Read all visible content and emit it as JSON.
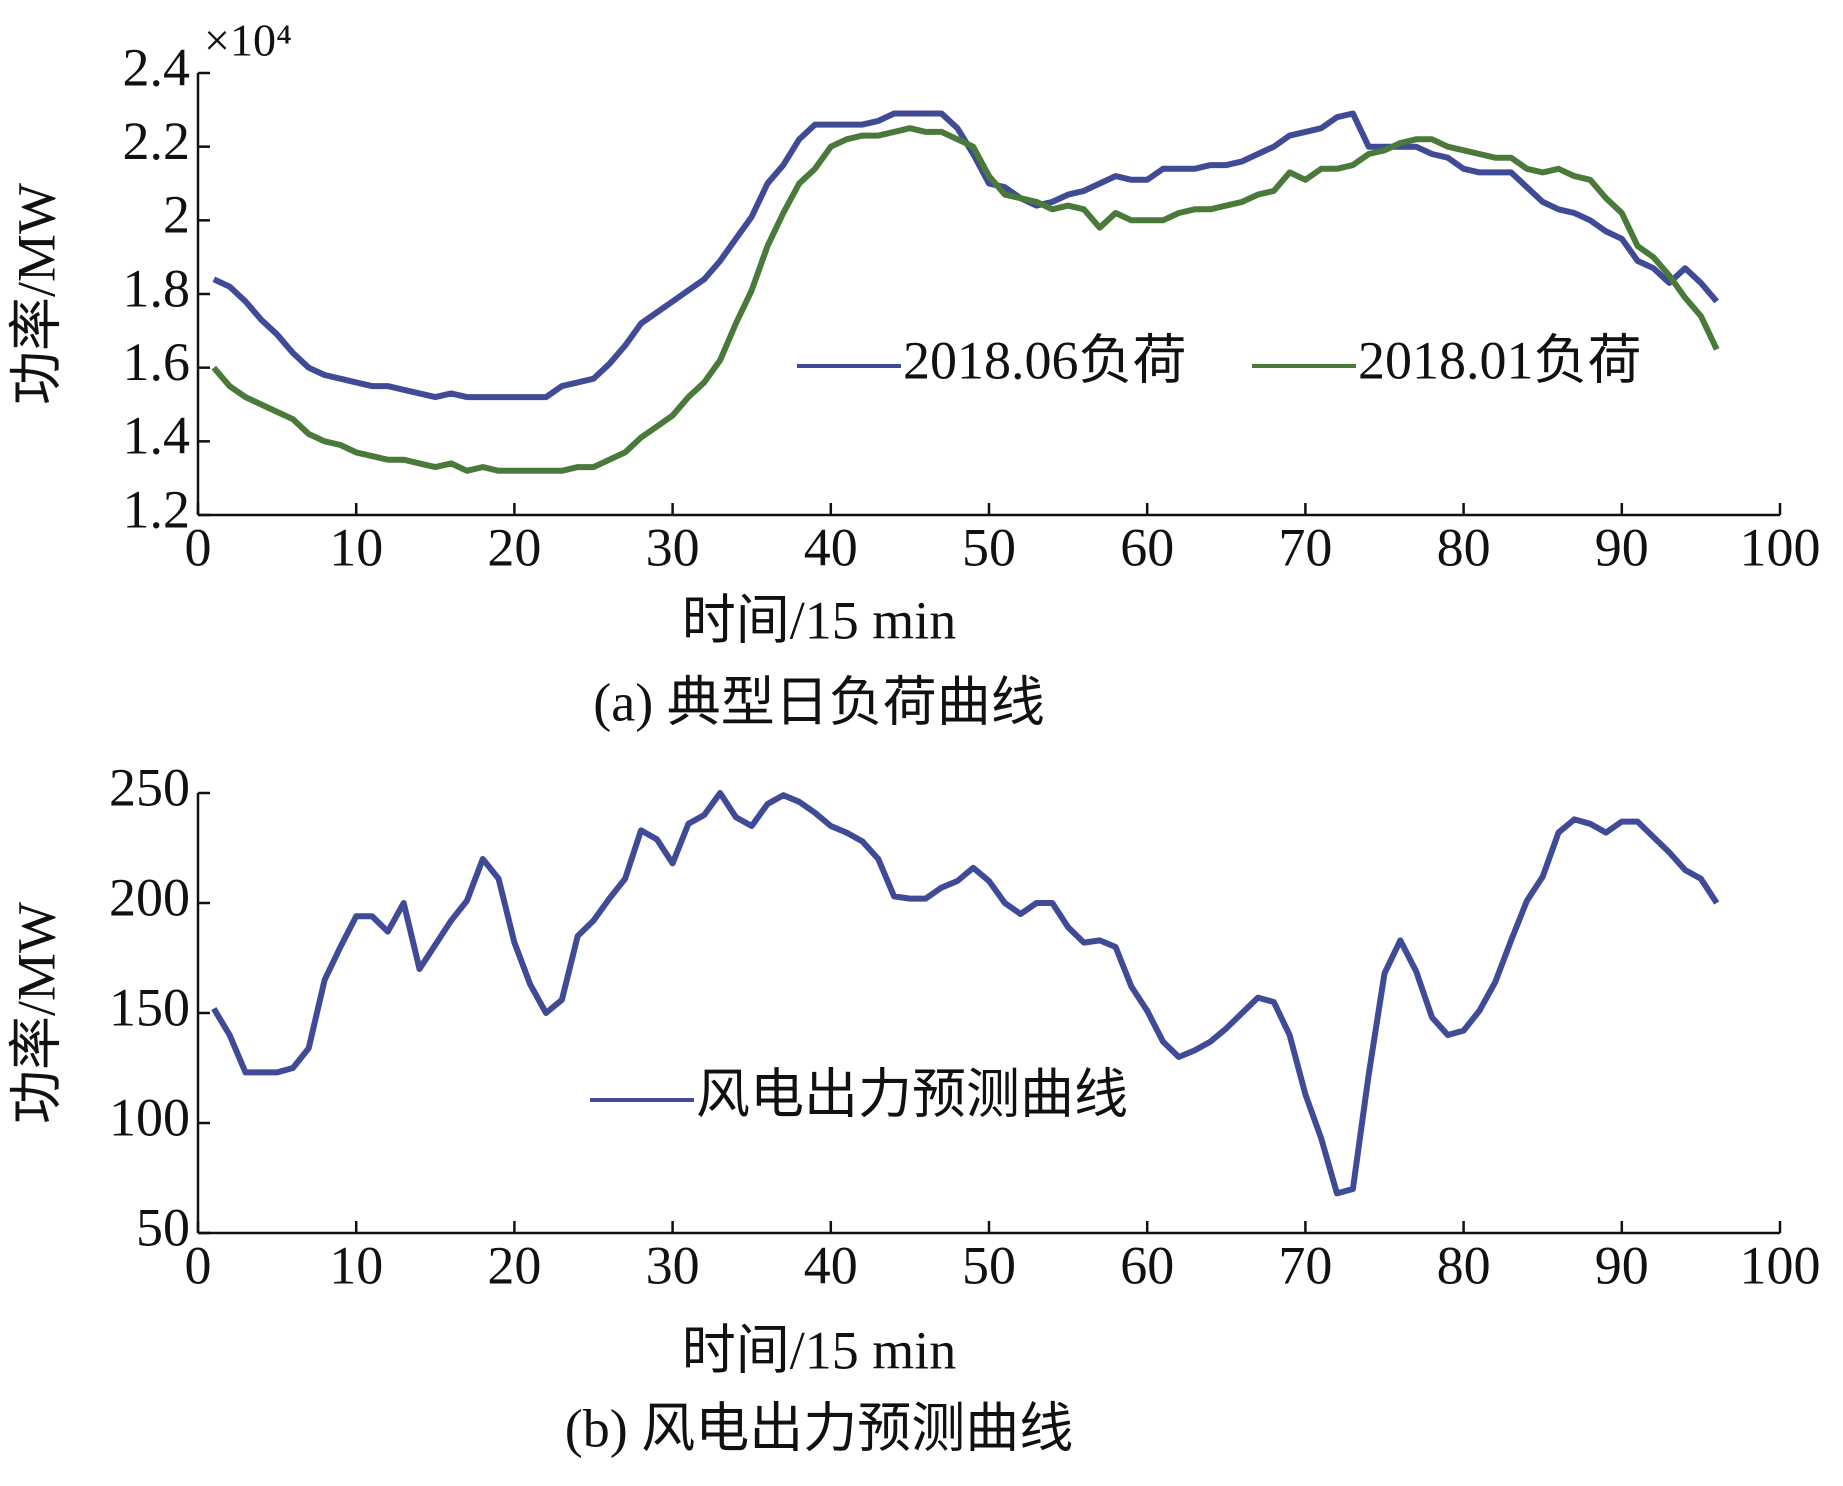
{
  "chart_data": [
    {
      "type": "line",
      "title": "(a) 典型日负荷曲线",
      "xlabel": "时间/15 min",
      "ylabel": "功率/MW",
      "axis_multiplier": "×10⁴",
      "legend": "center right",
      "xlim": [
        0,
        100
      ],
      "xticks": [
        0,
        10,
        20,
        30,
        40,
        50,
        60,
        70,
        80,
        90,
        100
      ],
      "ylim": [
        1.2,
        2.4
      ],
      "yticks": [
        1.2,
        1.4,
        1.6,
        1.8,
        2,
        2.2,
        2.4
      ],
      "x": [
        1,
        2,
        3,
        4,
        5,
        6,
        7,
        8,
        9,
        10,
        11,
        12,
        13,
        14,
        15,
        16,
        17,
        18,
        19,
        20,
        21,
        22,
        23,
        24,
        25,
        26,
        27,
        28,
        29,
        30,
        31,
        32,
        33,
        34,
        35,
        36,
        37,
        38,
        39,
        40,
        41,
        42,
        43,
        44,
        45,
        46,
        47,
        48,
        49,
        50,
        51,
        52,
        53,
        54,
        55,
        56,
        57,
        58,
        59,
        60,
        61,
        62,
        63,
        64,
        65,
        66,
        67,
        68,
        69,
        70,
        71,
        72,
        73,
        74,
        75,
        76,
        77,
        78,
        79,
        80,
        81,
        82,
        83,
        84,
        85,
        86,
        87,
        88,
        89,
        90,
        91,
        92,
        93,
        94,
        95,
        96
      ],
      "series": [
        {
          "name": "2018.06负荷",
          "color": "#3f4b96",
          "values": [
            1.84,
            1.82,
            1.78,
            1.73,
            1.69,
            1.64,
            1.6,
            1.58,
            1.57,
            1.56,
            1.55,
            1.55,
            1.54,
            1.53,
            1.52,
            1.53,
            1.52,
            1.52,
            1.52,
            1.52,
            1.52,
            1.52,
            1.55,
            1.56,
            1.57,
            1.61,
            1.66,
            1.72,
            1.75,
            1.78,
            1.81,
            1.84,
            1.89,
            1.95,
            2.01,
            2.1,
            2.15,
            2.22,
            2.26,
            2.26,
            2.26,
            2.26,
            2.27,
            2.29,
            2.29,
            2.29,
            2.29,
            2.25,
            2.18,
            2.1,
            2.09,
            2.06,
            2.04,
            2.05,
            2.07,
            2.08,
            2.1,
            2.12,
            2.11,
            2.11,
            2.14,
            2.14,
            2.14,
            2.15,
            2.15,
            2.16,
            2.18,
            2.2,
            2.23,
            2.24,
            2.25,
            2.28,
            2.29,
            2.2,
            2.2,
            2.2,
            2.2,
            2.18,
            2.17,
            2.14,
            2.13,
            2.13,
            2.13,
            2.09,
            2.05,
            2.03,
            2.02,
            2.0,
            1.97,
            1.95,
            1.89,
            1.87,
            1.83,
            1.87,
            1.83,
            1.78
          ]
        },
        {
          "name": "2018.01负荷",
          "color": "#4a7a3a",
          "values": [
            1.6,
            1.55,
            1.52,
            1.5,
            1.48,
            1.46,
            1.42,
            1.4,
            1.39,
            1.37,
            1.36,
            1.35,
            1.35,
            1.34,
            1.33,
            1.34,
            1.32,
            1.33,
            1.32,
            1.32,
            1.32,
            1.32,
            1.32,
            1.33,
            1.33,
            1.35,
            1.37,
            1.41,
            1.44,
            1.47,
            1.52,
            1.56,
            1.62,
            1.72,
            1.81,
            1.93,
            2.02,
            2.1,
            2.14,
            2.2,
            2.22,
            2.23,
            2.23,
            2.24,
            2.25,
            2.24,
            2.24,
            2.22,
            2.2,
            2.12,
            2.07,
            2.06,
            2.05,
            2.03,
            2.04,
            2.03,
            1.98,
            2.02,
            2.0,
            2.0,
            2.0,
            2.02,
            2.03,
            2.03,
            2.04,
            2.05,
            2.07,
            2.08,
            2.13,
            2.11,
            2.14,
            2.14,
            2.15,
            2.18,
            2.19,
            2.21,
            2.22,
            2.22,
            2.2,
            2.19,
            2.18,
            2.17,
            2.17,
            2.14,
            2.13,
            2.14,
            2.12,
            2.11,
            2.06,
            2.02,
            1.93,
            1.9,
            1.85,
            1.79,
            1.74,
            1.65
          ]
        }
      ]
    },
    {
      "type": "line",
      "title": "(b) 风电出力预测曲线",
      "xlabel": "时间/15 min",
      "ylabel": "功率/MW",
      "legend": "center",
      "xlim": [
        0,
        100
      ],
      "xticks": [
        0,
        10,
        20,
        30,
        40,
        50,
        60,
        70,
        80,
        90,
        100
      ],
      "ylim": [
        50,
        250
      ],
      "yticks": [
        50,
        100,
        150,
        200,
        250
      ],
      "x": [
        1,
        2,
        3,
        4,
        5,
        6,
        7,
        8,
        9,
        10,
        11,
        12,
        13,
        14,
        15,
        16,
        17,
        18,
        19,
        20,
        21,
        22,
        23,
        24,
        25,
        26,
        27,
        28,
        29,
        30,
        31,
        32,
        33,
        34,
        35,
        36,
        37,
        38,
        39,
        40,
        41,
        42,
        43,
        44,
        45,
        46,
        47,
        48,
        49,
        50,
        51,
        52,
        53,
        54,
        55,
        56,
        57,
        58,
        59,
        60,
        61,
        62,
        63,
        64,
        65,
        66,
        67,
        68,
        69,
        70,
        71,
        72,
        73,
        74,
        75,
        76,
        77,
        78,
        79,
        80,
        81,
        82,
        83,
        84,
        85,
        86,
        87,
        88,
        89,
        90,
        91,
        92,
        93,
        94,
        95,
        96
      ],
      "series": [
        {
          "name": "风电出力预测曲线",
          "color": "#3f4b96",
          "values": [
            152,
            140,
            123,
            123,
            123,
            125,
            134,
            165,
            180,
            194,
            194,
            187,
            200,
            170,
            181,
            192,
            201,
            220,
            211,
            182,
            163,
            150,
            156,
            185,
            192,
            202,
            211,
            233,
            229,
            218,
            236,
            240,
            250,
            239,
            235,
            245,
            249,
            246,
            241,
            235,
            232,
            228,
            220,
            203,
            202,
            202,
            207,
            210,
            216,
            210,
            200,
            195,
            200,
            200,
            189,
            182,
            183,
            180,
            162,
            151,
            137,
            130,
            133,
            137,
            143,
            150,
            157,
            155,
            140,
            113,
            93,
            68,
            70,
            122,
            168,
            183,
            169,
            148,
            140,
            142,
            151,
            164,
            183,
            201,
            212,
            232,
            238,
            236,
            232,
            237,
            237,
            230,
            223,
            215,
            211,
            200
          ]
        }
      ]
    }
  ]
}
